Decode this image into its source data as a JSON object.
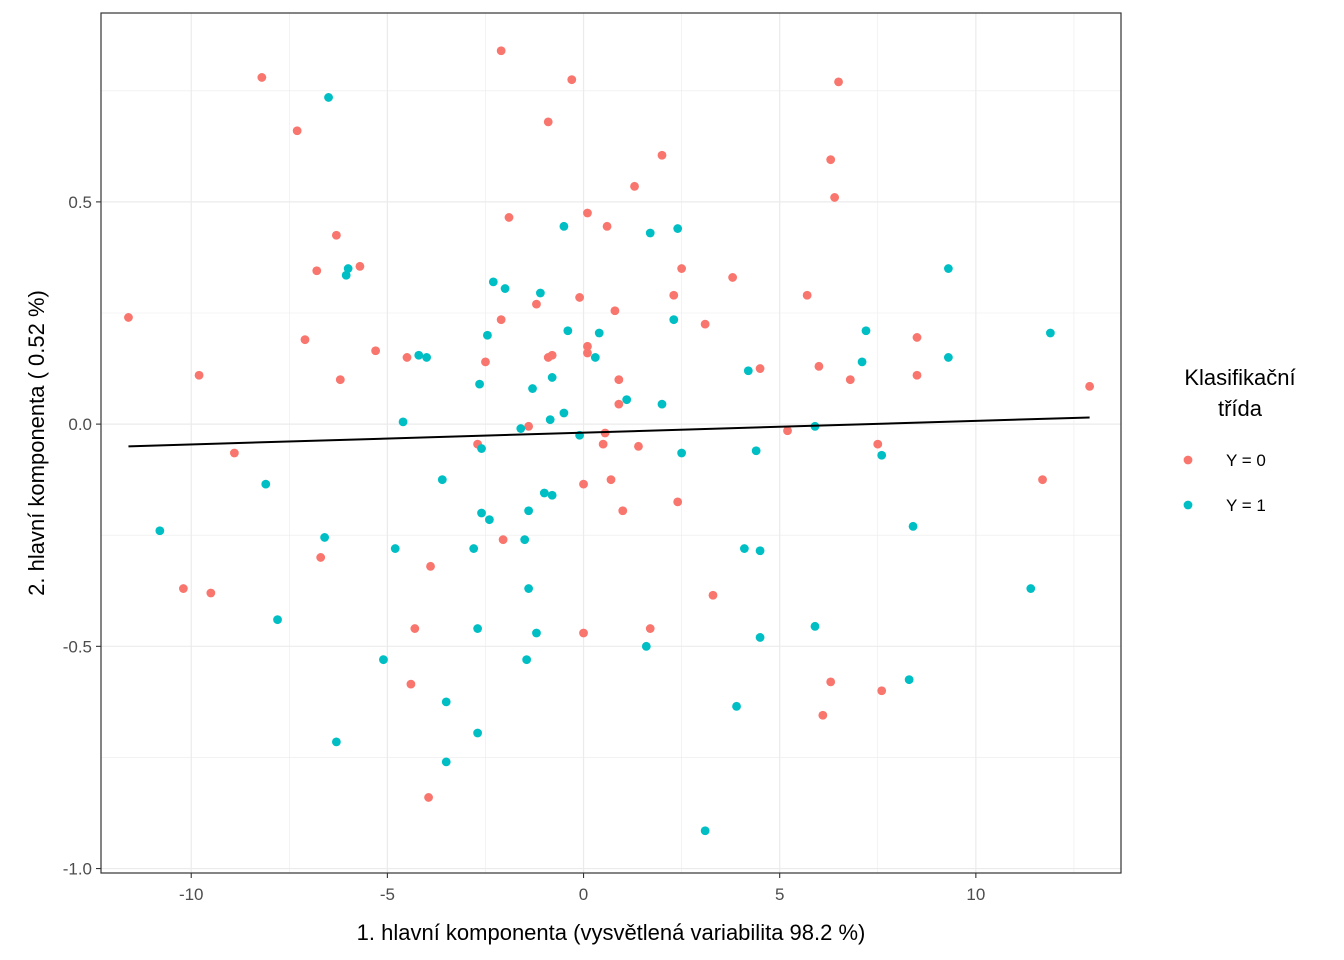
{
  "chart_data": {
    "type": "scatter",
    "xlabel": "1. hlavní komponenta (vysvětlená variabilita 98.2 %)",
    "ylabel": "2. hlavní komponenta ( 0.52 %)",
    "xlim": [
      -12.3,
      13.7
    ],
    "ylim": [
      -1.01,
      0.925
    ],
    "x_ticks": [
      -10,
      -5,
      0,
      5,
      10
    ],
    "x_tick_labels": [
      "-10",
      "-5",
      "0",
      "5",
      "10"
    ],
    "y_ticks": [
      -1.0,
      -0.5,
      0.0,
      0.5
    ],
    "y_tick_labels": [
      "-1.0",
      "-0.5",
      "0.0",
      "0.5"
    ],
    "grid": true,
    "legend": {
      "title_lines": [
        "Klasifikační",
        "třída"
      ],
      "placement": "right"
    },
    "series": [
      {
        "name": "Y = 0",
        "color": "#F8766D",
        "points": [
          [
            -11.6,
            0.24
          ],
          [
            -9.8,
            0.11
          ],
          [
            -8.9,
            -0.065
          ],
          [
            -10.2,
            -0.37
          ],
          [
            -9.5,
            -0.38
          ],
          [
            -8.2,
            0.78
          ],
          [
            -7.3,
            0.66
          ],
          [
            -7.1,
            0.19
          ],
          [
            -6.8,
            0.345
          ],
          [
            -6.7,
            -0.3
          ],
          [
            -6.3,
            0.425
          ],
          [
            -6.2,
            0.1
          ],
          [
            -5.7,
            0.355
          ],
          [
            -5.3,
            0.165
          ],
          [
            -4.5,
            0.15
          ],
          [
            -4.4,
            -0.585
          ],
          [
            -4.3,
            -0.46
          ],
          [
            -3.9,
            -0.32
          ],
          [
            -3.95,
            -0.84
          ],
          [
            -2.7,
            -0.045
          ],
          [
            -2.5,
            0.14
          ],
          [
            -2.1,
            0.235
          ],
          [
            -2.05,
            -0.26
          ],
          [
            -2.1,
            0.84
          ],
          [
            -1.9,
            0.465
          ],
          [
            -1.4,
            -0.005
          ],
          [
            -1.2,
            0.27
          ],
          [
            -0.9,
            0.15
          ],
          [
            -0.8,
            0.155
          ],
          [
            -0.9,
            0.68
          ],
          [
            -0.3,
            0.775
          ],
          [
            -0.1,
            0.285
          ],
          [
            0.0,
            -0.135
          ],
          [
            0.0,
            -0.47
          ],
          [
            0.1,
            0.175
          ],
          [
            0.1,
            0.16
          ],
          [
            0.1,
            0.475
          ],
          [
            0.5,
            -0.045
          ],
          [
            0.55,
            -0.02
          ],
          [
            0.6,
            0.445
          ],
          [
            0.7,
            -0.125
          ],
          [
            0.8,
            0.255
          ],
          [
            0.9,
            0.1
          ],
          [
            0.9,
            0.045
          ],
          [
            1.0,
            -0.195
          ],
          [
            1.3,
            0.535
          ],
          [
            1.4,
            -0.05
          ],
          [
            1.7,
            -0.46
          ],
          [
            2.0,
            0.605
          ],
          [
            2.3,
            0.29
          ],
          [
            2.4,
            -0.175
          ],
          [
            2.5,
            0.35
          ],
          [
            3.1,
            0.225
          ],
          [
            3.3,
            -0.385
          ],
          [
            3.8,
            0.33
          ],
          [
            4.5,
            0.125
          ],
          [
            5.2,
            -0.015
          ],
          [
            5.7,
            0.29
          ],
          [
            6.0,
            0.13
          ],
          [
            6.1,
            -0.655
          ],
          [
            6.3,
            -0.58
          ],
          [
            6.3,
            0.595
          ],
          [
            6.4,
            0.51
          ],
          [
            6.5,
            0.77
          ],
          [
            6.8,
            0.1
          ],
          [
            7.5,
            -0.045
          ],
          [
            7.6,
            -0.6
          ],
          [
            8.5,
            0.195
          ],
          [
            8.5,
            0.11
          ],
          [
            11.7,
            -0.125
          ],
          [
            12.9,
            0.085
          ]
        ]
      },
      {
        "name": "Y = 1",
        "color": "#00BFC4",
        "points": [
          [
            -10.8,
            -0.24
          ],
          [
            -8.1,
            -0.135
          ],
          [
            -7.8,
            -0.44
          ],
          [
            -6.5,
            0.735
          ],
          [
            -6.6,
            -0.255
          ],
          [
            -6.3,
            -0.715
          ],
          [
            -6.0,
            0.35
          ],
          [
            -6.05,
            0.335
          ],
          [
            -5.1,
            -0.53
          ],
          [
            -4.8,
            -0.28
          ],
          [
            -4.6,
            0.005
          ],
          [
            -4.2,
            0.155
          ],
          [
            -4.0,
            0.15
          ],
          [
            -3.6,
            -0.125
          ],
          [
            -3.5,
            -0.625
          ],
          [
            -3.5,
            -0.76
          ],
          [
            -2.8,
            -0.28
          ],
          [
            -2.7,
            -0.46
          ],
          [
            -2.7,
            -0.695
          ],
          [
            -2.65,
            0.09
          ],
          [
            -2.6,
            -0.2
          ],
          [
            -2.6,
            -0.055
          ],
          [
            -2.45,
            0.2
          ],
          [
            -2.4,
            -0.215
          ],
          [
            -2.3,
            0.32
          ],
          [
            -2.0,
            0.305
          ],
          [
            -1.6,
            -0.01
          ],
          [
            -1.5,
            -0.26
          ],
          [
            -1.4,
            -0.195
          ],
          [
            -1.4,
            -0.37
          ],
          [
            -1.45,
            -0.53
          ],
          [
            -1.3,
            0.08
          ],
          [
            -1.2,
            -0.47
          ],
          [
            -1.1,
            0.295
          ],
          [
            -1.0,
            -0.155
          ],
          [
            -0.8,
            -0.16
          ],
          [
            -0.8,
            0.105
          ],
          [
            -0.85,
            0.01
          ],
          [
            -0.5,
            0.445
          ],
          [
            -0.5,
            0.025
          ],
          [
            -0.4,
            0.21
          ],
          [
            -0.1,
            -0.025
          ],
          [
            0.3,
            0.15
          ],
          [
            0.4,
            0.205
          ],
          [
            1.1,
            0.055
          ],
          [
            1.6,
            -0.5
          ],
          [
            1.7,
            0.43
          ],
          [
            2.0,
            0.045
          ],
          [
            2.3,
            0.235
          ],
          [
            2.4,
            0.44
          ],
          [
            2.5,
            -0.065
          ],
          [
            3.1,
            -0.915
          ],
          [
            3.9,
            -0.635
          ],
          [
            4.1,
            -0.28
          ],
          [
            4.2,
            0.12
          ],
          [
            4.4,
            -0.06
          ],
          [
            4.5,
            -0.285
          ],
          [
            4.5,
            -0.48
          ],
          [
            5.9,
            -0.005
          ],
          [
            5.9,
            -0.455
          ],
          [
            7.1,
            0.14
          ],
          [
            7.2,
            0.21
          ],
          [
            7.6,
            -0.07
          ],
          [
            8.3,
            -0.575
          ],
          [
            8.4,
            -0.23
          ],
          [
            9.3,
            0.35
          ],
          [
            9.3,
            0.15
          ],
          [
            11.4,
            -0.37
          ],
          [
            11.9,
            0.205
          ]
        ]
      }
    ],
    "regression_line": {
      "x": [
        -11.6,
        12.9
      ],
      "y": [
        -0.05,
        0.015
      ],
      "color": "#000000"
    }
  }
}
